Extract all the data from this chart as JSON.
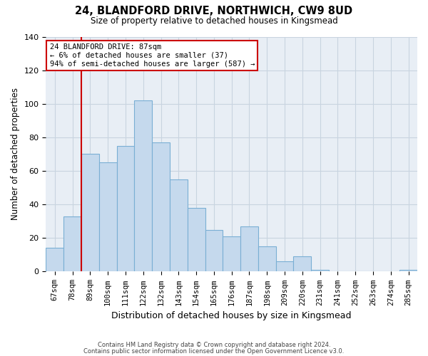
{
  "title": "24, BLANDFORD DRIVE, NORTHWICH, CW9 8UD",
  "subtitle": "Size of property relative to detached houses in Kingsmead",
  "xlabel": "Distribution of detached houses by size in Kingsmead",
  "ylabel": "Number of detached properties",
  "bar_labels": [
    "67sqm",
    "78sqm",
    "89sqm",
    "100sqm",
    "111sqm",
    "122sqm",
    "132sqm",
    "143sqm",
    "154sqm",
    "165sqm",
    "176sqm",
    "187sqm",
    "198sqm",
    "209sqm",
    "220sqm",
    "231sqm",
    "241sqm",
    "252sqm",
    "263sqm",
    "274sqm",
    "285sqm"
  ],
  "bar_heights": [
    14,
    33,
    70,
    65,
    75,
    102,
    77,
    55,
    38,
    25,
    21,
    27,
    15,
    6,
    9,
    1,
    0,
    0,
    0,
    0,
    1
  ],
  "bar_color": "#c5d9ed",
  "bar_edge_color": "#7aafd4",
  "vline_color": "#cc0000",
  "annotation_text": "24 BLANDFORD DRIVE: 87sqm\n← 6% of detached houses are smaller (37)\n94% of semi-detached houses are larger (587) →",
  "annotation_box_color": "#ffffff",
  "annotation_box_edge": "#cc0000",
  "ylim": [
    0,
    140
  ],
  "yticks": [
    0,
    20,
    40,
    60,
    80,
    100,
    120,
    140
  ],
  "footer_line1": "Contains HM Land Registry data © Crown copyright and database right 2024.",
  "footer_line2": "Contains public sector information licensed under the Open Government Licence v3.0.",
  "background_color": "#ffffff",
  "plot_bg_color": "#e8eef5",
  "grid_color": "#c8d4e0"
}
